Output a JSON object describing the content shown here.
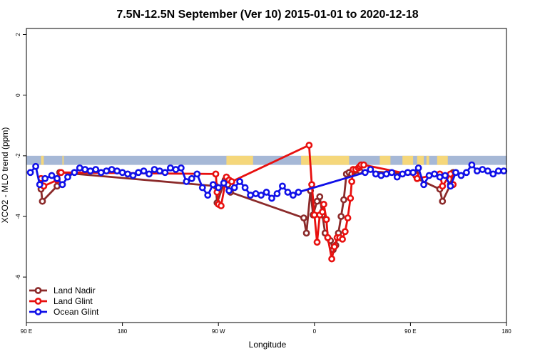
{
  "chart_data": {
    "type": "line",
    "title": "7.5N-12.5N September (Ver 10)   2015-01-01 to 2020-12-18",
    "xlabel": "Longitude",
    "ylabel": "XCO2 - MLO trend (ppm)",
    "xlim": [
      90,
      450
    ],
    "ylim": [
      -7.5,
      2.2
    ],
    "x_ticks": [
      {
        "value": 90,
        "label": "90 E"
      },
      {
        "value": 162,
        "label": "180"
      },
      {
        "value": 234,
        "label": "90 W"
      },
      {
        "value": 306,
        "label": "0"
      },
      {
        "value": 378,
        "label": "90 E"
      },
      {
        "value": 450,
        "label": "180"
      }
    ],
    "y_ticks": [
      {
        "value": 2,
        "label": "2"
      },
      {
        "value": 0,
        "label": "0"
      },
      {
        "value": -2,
        "label": "-2"
      },
      {
        "value": -4,
        "label": "-4"
      },
      {
        "value": -6,
        "label": "-6"
      }
    ],
    "land_band": {
      "ymin": -2.3,
      "ymax": -2.0,
      "ocean_color": "#a6b8d6",
      "land_color": "#f5d77b",
      "land_ranges": [
        [
          101,
          103
        ],
        [
          117,
          118
        ],
        [
          240,
          260
        ],
        [
          296,
          332
        ],
        [
          355,
          363
        ],
        [
          372,
          380
        ],
        [
          383,
          388
        ],
        [
          390,
          392
        ],
        [
          398,
          406
        ]
      ]
    },
    "legend": {
      "position": "bottom-left"
    },
    "series": [
      {
        "name": "Land Nadir",
        "color": "#8b2a2a",
        "x": [
          101,
          102,
          113,
          115,
          232,
          233,
          239,
          241,
          243,
          298,
          300,
          303,
          305,
          308,
          310,
          312,
          314,
          316,
          318,
          320,
          322,
          324,
          326,
          328,
          330,
          332,
          334,
          336,
          338,
          340,
          382,
          383,
          400,
          402,
          408,
          410
        ],
        "y": [
          -3.1,
          -3.5,
          -3.0,
          -2.55,
          -3.0,
          -3.55,
          -2.8,
          -2.95,
          -3.2,
          -4.05,
          -4.55,
          -3.15,
          -3.95,
          -3.5,
          -3.35,
          -3.95,
          -4.55,
          -4.7,
          -4.8,
          -5.1,
          -4.95,
          -4.55,
          -4.0,
          -3.45,
          -2.6,
          -2.55,
          -2.6,
          -2.5,
          -2.45,
          -2.5,
          -2.6,
          -2.75,
          -3.1,
          -3.5,
          -2.95,
          -2.55
        ]
      },
      {
        "name": "Land Glint",
        "color": "#e8100f",
        "x": [
          101,
          103,
          113,
          116,
          232,
          233,
          234,
          236,
          240,
          242,
          244,
          302,
          304,
          306,
          308,
          310,
          312,
          313,
          315,
          316,
          319,
          321,
          323,
          325,
          327,
          329,
          331,
          333,
          334,
          335,
          337,
          339,
          340,
          341,
          343,
          382,
          383,
          400,
          402,
          408,
          410
        ],
        "y": [
          -2.75,
          -3.0,
          -2.8,
          -2.55,
          -2.6,
          -3.2,
          -3.6,
          -3.65,
          -2.7,
          -2.8,
          -2.85,
          -1.65,
          -2.95,
          -3.95,
          -4.85,
          -3.95,
          -3.85,
          -3.6,
          -4.1,
          -4.7,
          -5.4,
          -5.0,
          -4.7,
          -4.7,
          -4.75,
          -4.5,
          -4.05,
          -3.4,
          -2.85,
          -2.45,
          -2.45,
          -2.4,
          -2.35,
          -2.3,
          -2.3,
          -2.65,
          -2.75,
          -2.6,
          -3.0,
          -2.6,
          -2.95
        ]
      },
      {
        "name": "Ocean Glint",
        "color": "#1010e8",
        "x": [
          93,
          97,
          100,
          104,
          109,
          113,
          117,
          121,
          126,
          130,
          134,
          138,
          142,
          146,
          150,
          154,
          158,
          162,
          166,
          170,
          174,
          178,
          182,
          186,
          190,
          194,
          198,
          202,
          206,
          210,
          214,
          218,
          222,
          226,
          230,
          234,
          238,
          242,
          246,
          250,
          254,
          258,
          262,
          266,
          270,
          274,
          278,
          282,
          286,
          290,
          294,
          344,
          348,
          352,
          356,
          360,
          364,
          368,
          372,
          376,
          380,
          384,
          388,
          392,
          396,
          400,
          404,
          408,
          412,
          416,
          420,
          424,
          428,
          432,
          436,
          440,
          444,
          448
        ],
        "y": [
          -2.55,
          -2.35,
          -2.95,
          -2.75,
          -2.65,
          -2.75,
          -2.95,
          -2.7,
          -2.55,
          -2.4,
          -2.45,
          -2.5,
          -2.45,
          -2.55,
          -2.5,
          -2.45,
          -2.5,
          -2.55,
          -2.6,
          -2.65,
          -2.55,
          -2.5,
          -2.6,
          -2.45,
          -2.5,
          -2.55,
          -2.4,
          -2.45,
          -2.4,
          -2.85,
          -2.75,
          -2.6,
          -3.05,
          -3.3,
          -2.95,
          -3.05,
          -2.9,
          -3.15,
          -3.05,
          -2.85,
          -3.05,
          -3.3,
          -3.25,
          -3.3,
          -3.2,
          -3.4,
          -3.25,
          -3.0,
          -3.2,
          -3.3,
          -3.2,
          -2.55,
          -2.45,
          -2.6,
          -2.65,
          -2.6,
          -2.55,
          -2.7,
          -2.6,
          -2.55,
          -2.55,
          -2.4,
          -2.95,
          -2.65,
          -2.6,
          -2.7,
          -2.65,
          -3.0,
          -2.55,
          -2.65,
          -2.55,
          -2.3,
          -2.5,
          -2.45,
          -2.5,
          -2.6,
          -2.5,
          -2.5
        ]
      }
    ]
  }
}
